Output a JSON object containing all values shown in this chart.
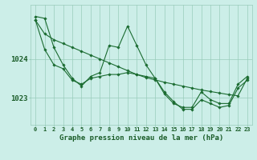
{
  "title": "Graphe pression niveau de la mer (hPa)",
  "background_color": "#cceee8",
  "grid_color": "#99ccbb",
  "line_color": "#1a6b30",
  "text_color": "#1a5c28",
  "x_values": [
    0,
    1,
    2,
    3,
    4,
    5,
    6,
    7,
    8,
    9,
    10,
    11,
    12,
    13,
    14,
    15,
    16,
    17,
    18,
    19,
    20,
    21,
    22,
    23
  ],
  "y_main": [
    1025.1,
    1025.05,
    1024.3,
    1023.85,
    1023.5,
    1023.3,
    1023.55,
    1023.65,
    1024.35,
    1024.3,
    1024.85,
    1024.35,
    1023.85,
    1023.5,
    1023.1,
    1022.85,
    1022.75,
    1022.75,
    1023.15,
    1022.95,
    1022.85,
    1022.85,
    1023.35,
    1023.55
  ],
  "y_mid": [
    1025.0,
    1024.25,
    1023.85,
    1023.75,
    1023.45,
    1023.35,
    1023.5,
    1023.55,
    1023.6,
    1023.6,
    1023.65,
    1023.6,
    1023.55,
    1023.5,
    1023.15,
    1022.9,
    1022.7,
    1022.7,
    1022.95,
    1022.85,
    1022.75,
    1022.8,
    1023.25,
    1023.45
  ],
  "y_trend": [
    1025.0,
    1024.65,
    1024.5,
    1024.4,
    1024.3,
    1024.2,
    1024.1,
    1024.0,
    1023.9,
    1023.8,
    1023.7,
    1023.6,
    1023.52,
    1023.46,
    1023.4,
    1023.35,
    1023.3,
    1023.25,
    1023.2,
    1023.16,
    1023.12,
    1023.08,
    1023.05,
    1023.5
  ],
  "yticks": [
    1023.0,
    1024.0
  ],
  "ylim": [
    1022.3,
    1025.4
  ],
  "xlim": [
    -0.5,
    23.5
  ],
  "marker": "D",
  "markersize": 1.8,
  "linewidth": 0.8,
  "fontsize_label": 6.5,
  "fontsize_tick": 5.0
}
